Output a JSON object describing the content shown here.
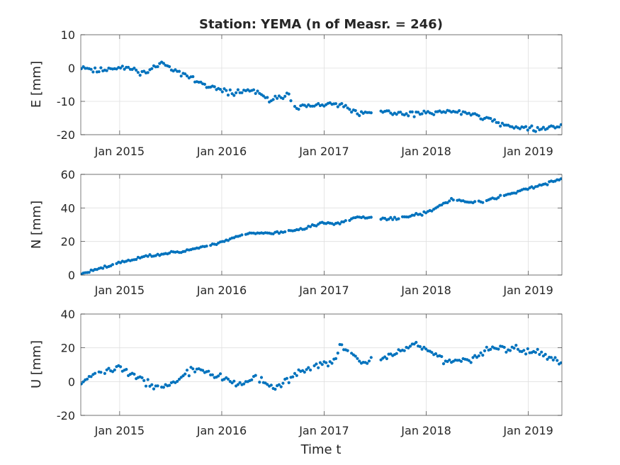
{
  "chart_data": {
    "type": "scatter",
    "title": "Station: YEMA (n of Measr. = 246)",
    "xlabel": "Time t",
    "marker_color": "#0072BD",
    "grid": true,
    "x_range": [
      "2014-08-15",
      "2019-05-01"
    ],
    "x_ticks": [
      {
        "date": "2015-01-01",
        "label": "Jan 2015"
      },
      {
        "date": "2016-01-01",
        "label": "Jan 2016"
      },
      {
        "date": "2017-01-01",
        "label": "Jan 2017"
      },
      {
        "date": "2018-01-01",
        "label": "Jan 2018"
      },
      {
        "date": "2019-01-01",
        "label": "Jan 2019"
      }
    ],
    "panels": [
      {
        "name": "E",
        "ylabel": "E [mm]",
        "ylim": [
          -20,
          10
        ],
        "yticks": [
          -20,
          -10,
          0,
          10
        ],
        "anchors": [
          [
            "2014-08-15",
            0.5
          ],
          [
            "2014-10-15",
            -1
          ],
          [
            "2014-12-01",
            0
          ],
          [
            "2015-02-01",
            0
          ],
          [
            "2015-04-01",
            -1.5
          ],
          [
            "2015-06-01",
            1.5
          ],
          [
            "2015-08-01",
            -1
          ],
          [
            "2015-10-01",
            -4
          ],
          [
            "2015-12-15",
            -6.5
          ],
          [
            "2016-02-15",
            -7.5
          ],
          [
            "2016-04-15",
            -6.5
          ],
          [
            "2016-06-15",
            -9.5
          ],
          [
            "2016-08-01",
            -9
          ],
          [
            "2016-08-25",
            -7
          ],
          [
            "2016-09-10",
            -11.5
          ],
          [
            "2016-11-15",
            -11.5
          ],
          [
            "2017-01-01",
            -11
          ],
          [
            "2017-03-01",
            -11
          ],
          [
            "2017-05-01",
            -14
          ],
          [
            "2017-08-01",
            -13
          ],
          [
            "2017-10-01",
            -14
          ],
          [
            "2018-01-01",
            -13.5
          ],
          [
            "2018-04-01",
            -13
          ],
          [
            "2018-06-01",
            -13.5
          ],
          [
            "2018-08-01",
            -15
          ],
          [
            "2018-10-01",
            -17
          ],
          [
            "2019-01-01",
            -18
          ],
          [
            "2019-03-01",
            -18.5
          ],
          [
            "2019-05-01",
            -17
          ]
        ],
        "jitter": 0.8,
        "seed": 11,
        "gaps": [
          [
            "2017-06-20",
            "2017-07-20"
          ]
        ]
      },
      {
        "name": "N",
        "ylabel": "N [mm]",
        "ylim": [
          0,
          60
        ],
        "yticks": [
          0,
          20,
          40,
          60
        ],
        "anchors": [
          [
            "2014-08-15",
            0.5
          ],
          [
            "2014-12-01",
            6
          ],
          [
            "2015-04-01",
            11
          ],
          [
            "2015-08-01",
            14
          ],
          [
            "2015-12-01",
            18
          ],
          [
            "2016-04-01",
            25
          ],
          [
            "2016-07-01",
            25
          ],
          [
            "2016-10-01",
            27
          ],
          [
            "2017-01-01",
            31
          ],
          [
            "2017-03-01",
            31
          ],
          [
            "2017-05-01",
            34.5
          ],
          [
            "2017-06-15",
            34
          ],
          [
            "2017-07-15",
            33
          ],
          [
            "2017-10-01",
            34
          ],
          [
            "2018-01-01",
            37
          ],
          [
            "2018-04-01",
            45
          ],
          [
            "2018-07-01",
            43
          ],
          [
            "2018-10-01",
            47
          ],
          [
            "2019-01-01",
            51.5
          ],
          [
            "2019-05-01",
            57
          ]
        ],
        "jitter": 0.8,
        "seed": 23,
        "gaps": [
          [
            "2017-06-20",
            "2017-07-20"
          ]
        ]
      },
      {
        "name": "U",
        "ylabel": "U [mm]",
        "ylim": [
          -20,
          40
        ],
        "yticks": [
          -20,
          0,
          20,
          40
        ],
        "anchors": [
          [
            "2014-08-15",
            0
          ],
          [
            "2014-10-15",
            5
          ],
          [
            "2015-01-01",
            8
          ],
          [
            "2015-03-01",
            3
          ],
          [
            "2015-05-01",
            -3
          ],
          [
            "2015-07-01",
            -2
          ],
          [
            "2015-10-01",
            8
          ],
          [
            "2016-01-01",
            2
          ],
          [
            "2016-03-01",
            -2
          ],
          [
            "2016-05-01",
            3
          ],
          [
            "2016-07-01",
            -5
          ],
          [
            "2016-10-01",
            5
          ],
          [
            "2016-12-01",
            10
          ],
          [
            "2017-02-01",
            11
          ],
          [
            "2017-03-01",
            23
          ],
          [
            "2017-05-01",
            12
          ],
          [
            "2017-09-01",
            15
          ],
          [
            "2017-12-01",
            22
          ],
          [
            "2018-03-01",
            13
          ],
          [
            "2018-06-01",
            13
          ],
          [
            "2018-09-01",
            20
          ],
          [
            "2018-12-01",
            19
          ],
          [
            "2019-02-01",
            17
          ],
          [
            "2019-05-01",
            10
          ]
        ],
        "jitter": 2.2,
        "seed": 37,
        "gaps": [
          [
            "2017-06-20",
            "2017-07-20"
          ]
        ]
      }
    ]
  }
}
